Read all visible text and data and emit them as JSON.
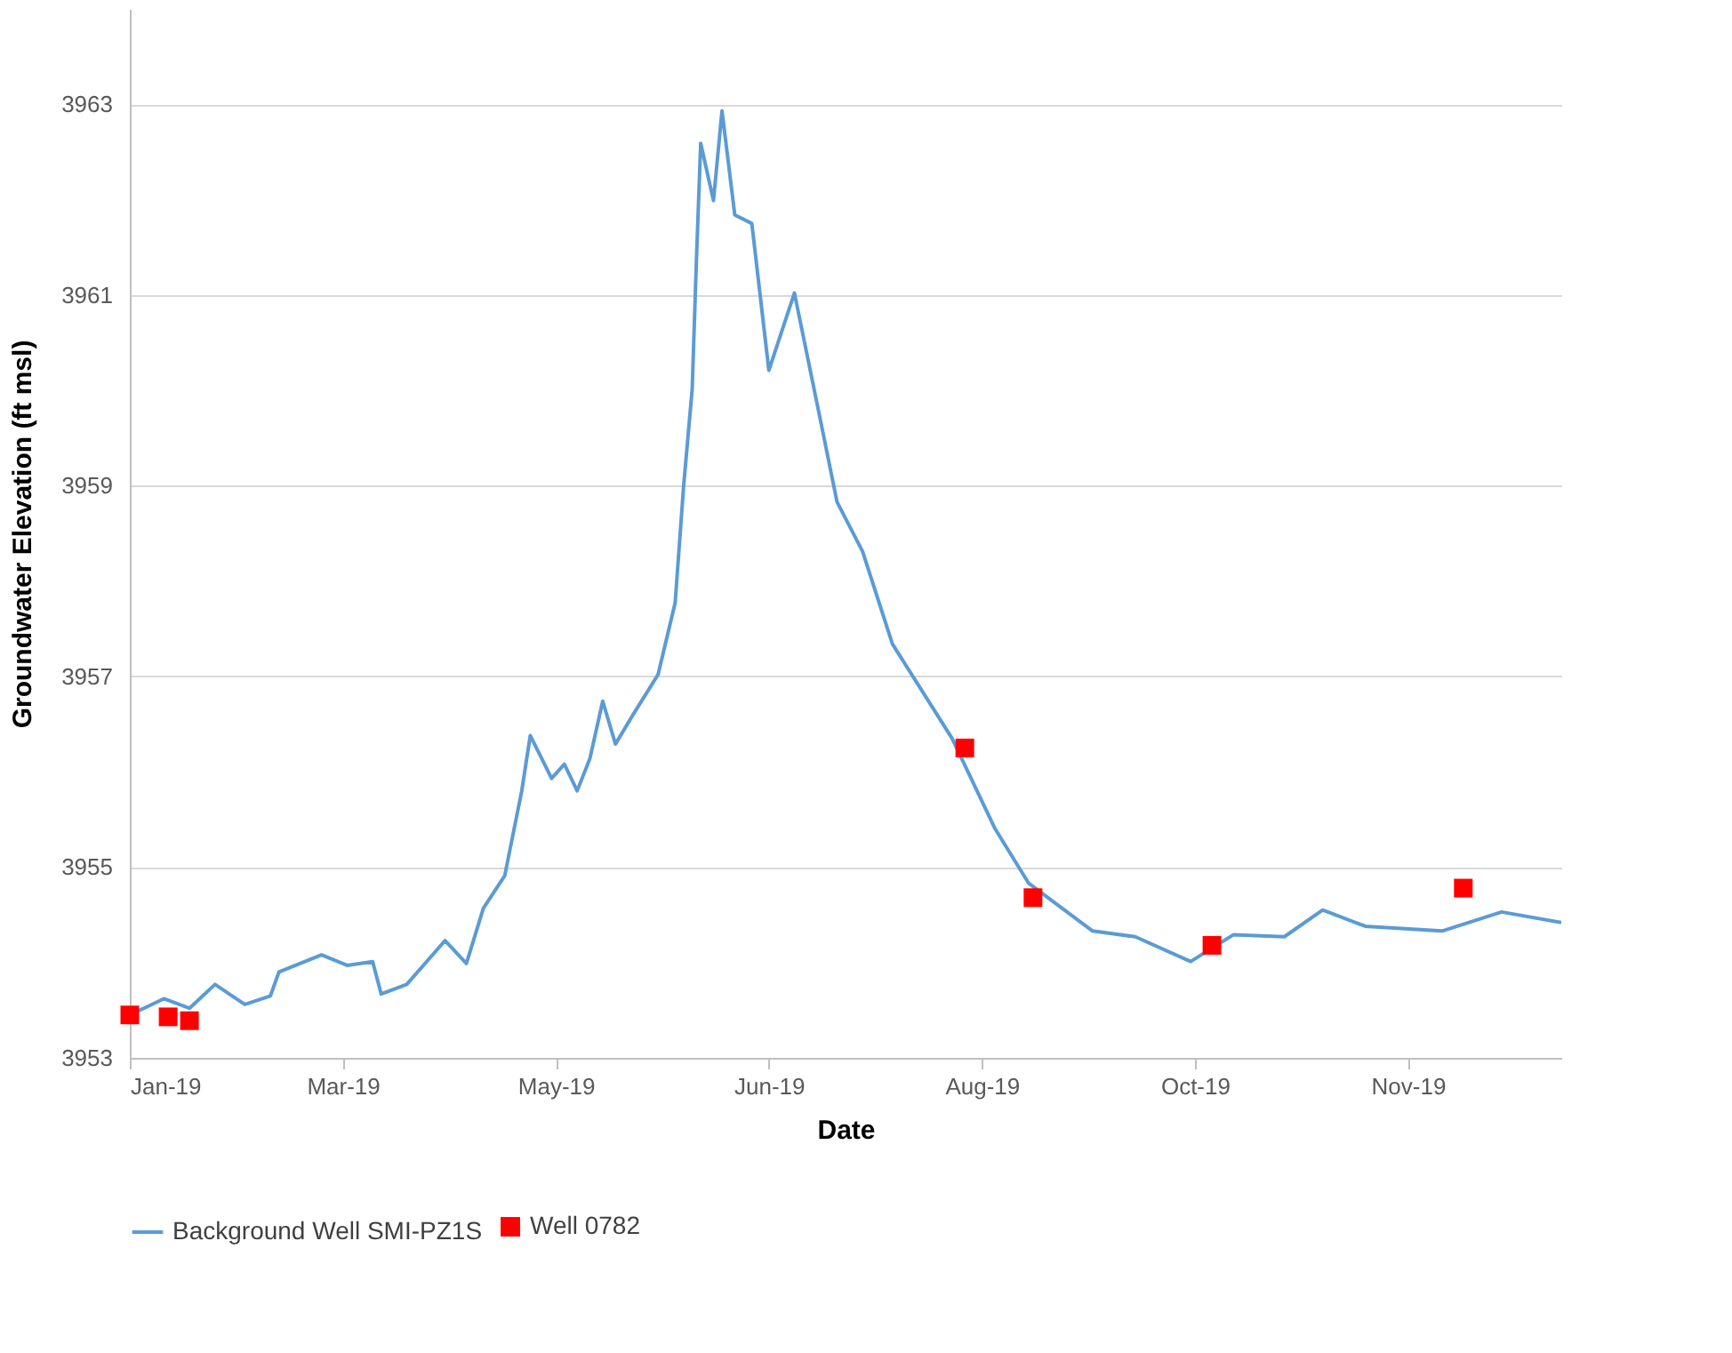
{
  "chart_data": {
    "type": "line",
    "xlabel": "Date",
    "ylabel": "Groundwater Elevation (ft msl)",
    "xlim": [
      "2019-01-28",
      "2019-12-30"
    ],
    "xticks": [
      {
        "value": "2019-01-28",
        "label": "Jan-19"
      },
      {
        "value": "2019-03-19",
        "label": "Mar-19"
      },
      {
        "value": "2019-05-08",
        "label": "May-19"
      },
      {
        "value": "2019-06-27",
        "label": "Jun-19"
      },
      {
        "value": "2019-08-16",
        "label": "Aug-19"
      },
      {
        "value": "2019-10-05",
        "label": "Oct-19"
      },
      {
        "value": "2019-11-24",
        "label": "Nov-19"
      }
    ],
    "ylim": [
      3953,
      3964
    ],
    "yticks": [
      3953,
      3955,
      3957,
      3959,
      3961,
      3963
    ],
    "grid": "y",
    "legend": "bottom",
    "series": [
      {
        "name": "Background Well SMI-PZ1S",
        "color": "#5b9bd5",
        "line_style": "solid",
        "marker": "none",
        "x": [
          "2019-01-28",
          "2019-02-05",
          "2019-02-11",
          "2019-02-17",
          "2019-02-24",
          "2019-03-02",
          "2019-03-04",
          "2019-03-14",
          "2019-03-20",
          "2019-03-26",
          "2019-03-28",
          "2019-04-03",
          "2019-04-12",
          "2019-04-17",
          "2019-04-21",
          "2019-04-26",
          "2019-04-30",
          "2019-05-02",
          "2019-05-07",
          "2019-05-10",
          "2019-05-13",
          "2019-05-16",
          "2019-05-19",
          "2019-05-22",
          "2019-05-26",
          "2019-06-01",
          "2019-06-05",
          "2019-06-07",
          "2019-06-09",
          "2019-06-10",
          "2019-06-11",
          "2019-06-14",
          "2019-06-16",
          "2019-06-19",
          "2019-06-23",
          "2019-06-27",
          "2019-07-03",
          "2019-07-09",
          "2019-07-13",
          "2019-07-19",
          "2019-07-26",
          "2019-08-09",
          "2019-08-19",
          "2019-08-27",
          "2019-09-11",
          "2019-09-21",
          "2019-10-04",
          "2019-10-14",
          "2019-10-26",
          "2019-11-04",
          "2019-11-14",
          "2019-12-02",
          "2019-12-16",
          "2019-12-30"
        ],
        "values": [
          3953.45,
          3953.62,
          3953.52,
          3953.77,
          3953.56,
          3953.65,
          3953.9,
          3954.08,
          3953.97,
          3954.01,
          3953.67,
          3953.77,
          3954.23,
          3953.99,
          3954.57,
          3954.91,
          3955.8,
          3956.38,
          3955.93,
          3956.08,
          3955.8,
          3956.14,
          3956.74,
          3956.29,
          3956.59,
          3957.02,
          3957.77,
          3959.0,
          3960.01,
          3961.37,
          3962.59,
          3961.99,
          3962.93,
          3961.84,
          3961.75,
          3960.21,
          3961.02,
          3959.71,
          3958.83,
          3958.31,
          3957.34,
          3956.35,
          3955.41,
          3954.83,
          3954.33,
          3954.27,
          3954.01,
          3954.29,
          3954.27,
          3954.55,
          3954.38,
          3954.33,
          3954.53,
          3954.42
        ]
      },
      {
        "name": "Well 0782",
        "type": "scatter",
        "color": "#ff0000",
        "marker": "square",
        "x": [
          "2019-01-28",
          "2019-02-06",
          "2019-02-11",
          "2019-08-12",
          "2019-08-28",
          "2019-10-09",
          "2019-12-07"
        ],
        "values": [
          3953.45,
          3953.43,
          3953.39,
          3956.25,
          3954.68,
          3954.18,
          3954.78
        ]
      }
    ]
  }
}
